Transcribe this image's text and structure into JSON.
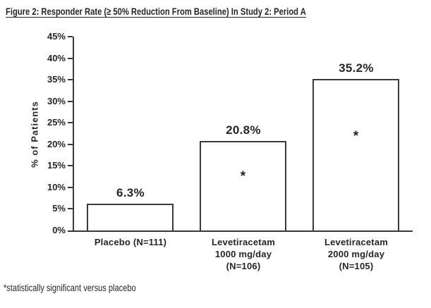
{
  "figure": {
    "title": "Figure 2: Responder Rate (≥ 50% Reduction From Baseline) In Study 2: Period A",
    "footnote": "*statistically significant versus placebo"
  },
  "chart_data": {
    "type": "bar",
    "title": "Figure 2: Responder Rate (≥ 50% Reduction From Baseline) In Study 2: Period A",
    "xlabel": "",
    "ylabel": "% of Patients",
    "ylim": [
      0,
      45
    ],
    "grid": false,
    "legend": "none",
    "ytick_values": [
      0,
      5,
      10,
      15,
      20,
      25,
      30,
      35,
      40,
      45
    ],
    "ytick_labels": [
      "0%",
      "5%",
      "10%",
      "15%",
      "20%",
      "25%",
      "30%",
      "35%",
      "40%",
      "45%"
    ],
    "significance_marker": "*",
    "bar_fill": "#ffffff",
    "bar_border": "#3a3a3a",
    "bars": [
      {
        "id": "placebo",
        "label_lines": [
          "Placebo  (N=111)"
        ],
        "value": 6.3,
        "value_label": "6.3%",
        "significant": false
      },
      {
        "id": "levetiracetam-1000",
        "label_lines": [
          "Levetiracetam",
          "1000  mg/day",
          "(N=106)"
        ],
        "value": 20.8,
        "value_label": "20.8%",
        "significant": true
      },
      {
        "id": "levetiracetam-2000",
        "label_lines": [
          "Levetiracetam",
          "2000  mg/day",
          "(N=105)"
        ],
        "value": 35.2,
        "value_label": "35.2%",
        "significant": true
      }
    ],
    "footnote": "*statistically significant versus placebo"
  }
}
